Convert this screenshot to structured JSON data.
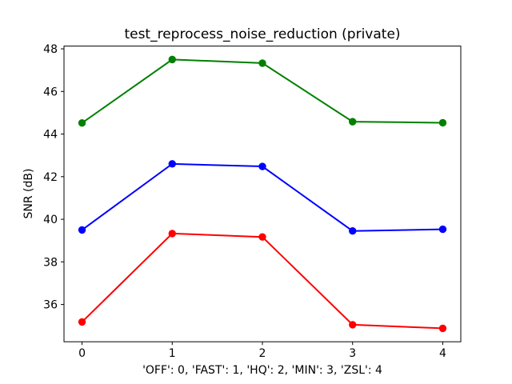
{
  "figure": {
    "background_color": "#ffffff",
    "axes_color": "#000000"
  },
  "chart_data": {
    "type": "line",
    "title": "test_reprocess_noise_reduction (private)",
    "xlabel": "'OFF': 0, 'FAST': 1, 'HQ': 2, 'MIN': 3, 'ZSL': 4",
    "ylabel": "SNR (dB)",
    "x": [
      0,
      1,
      2,
      3,
      4
    ],
    "xticks": [
      0,
      1,
      2,
      3,
      4
    ],
    "yticks": [
      36,
      38,
      40,
      42,
      44,
      46,
      48
    ],
    "xlim": [
      -0.2,
      4.2
    ],
    "ylim": [
      34.25,
      48.13
    ],
    "grid": false,
    "legend": false,
    "marker": "circle",
    "series": [
      {
        "name": "green-series",
        "color": "#008000",
        "values": [
          44.52,
          47.5,
          47.33,
          44.58,
          44.53
        ]
      },
      {
        "name": "blue-series",
        "color": "#0000ff",
        "values": [
          39.5,
          42.6,
          42.48,
          39.45,
          39.53
        ]
      },
      {
        "name": "red-series",
        "color": "#ff0000",
        "values": [
          35.18,
          39.33,
          39.17,
          35.05,
          34.88
        ]
      }
    ]
  }
}
